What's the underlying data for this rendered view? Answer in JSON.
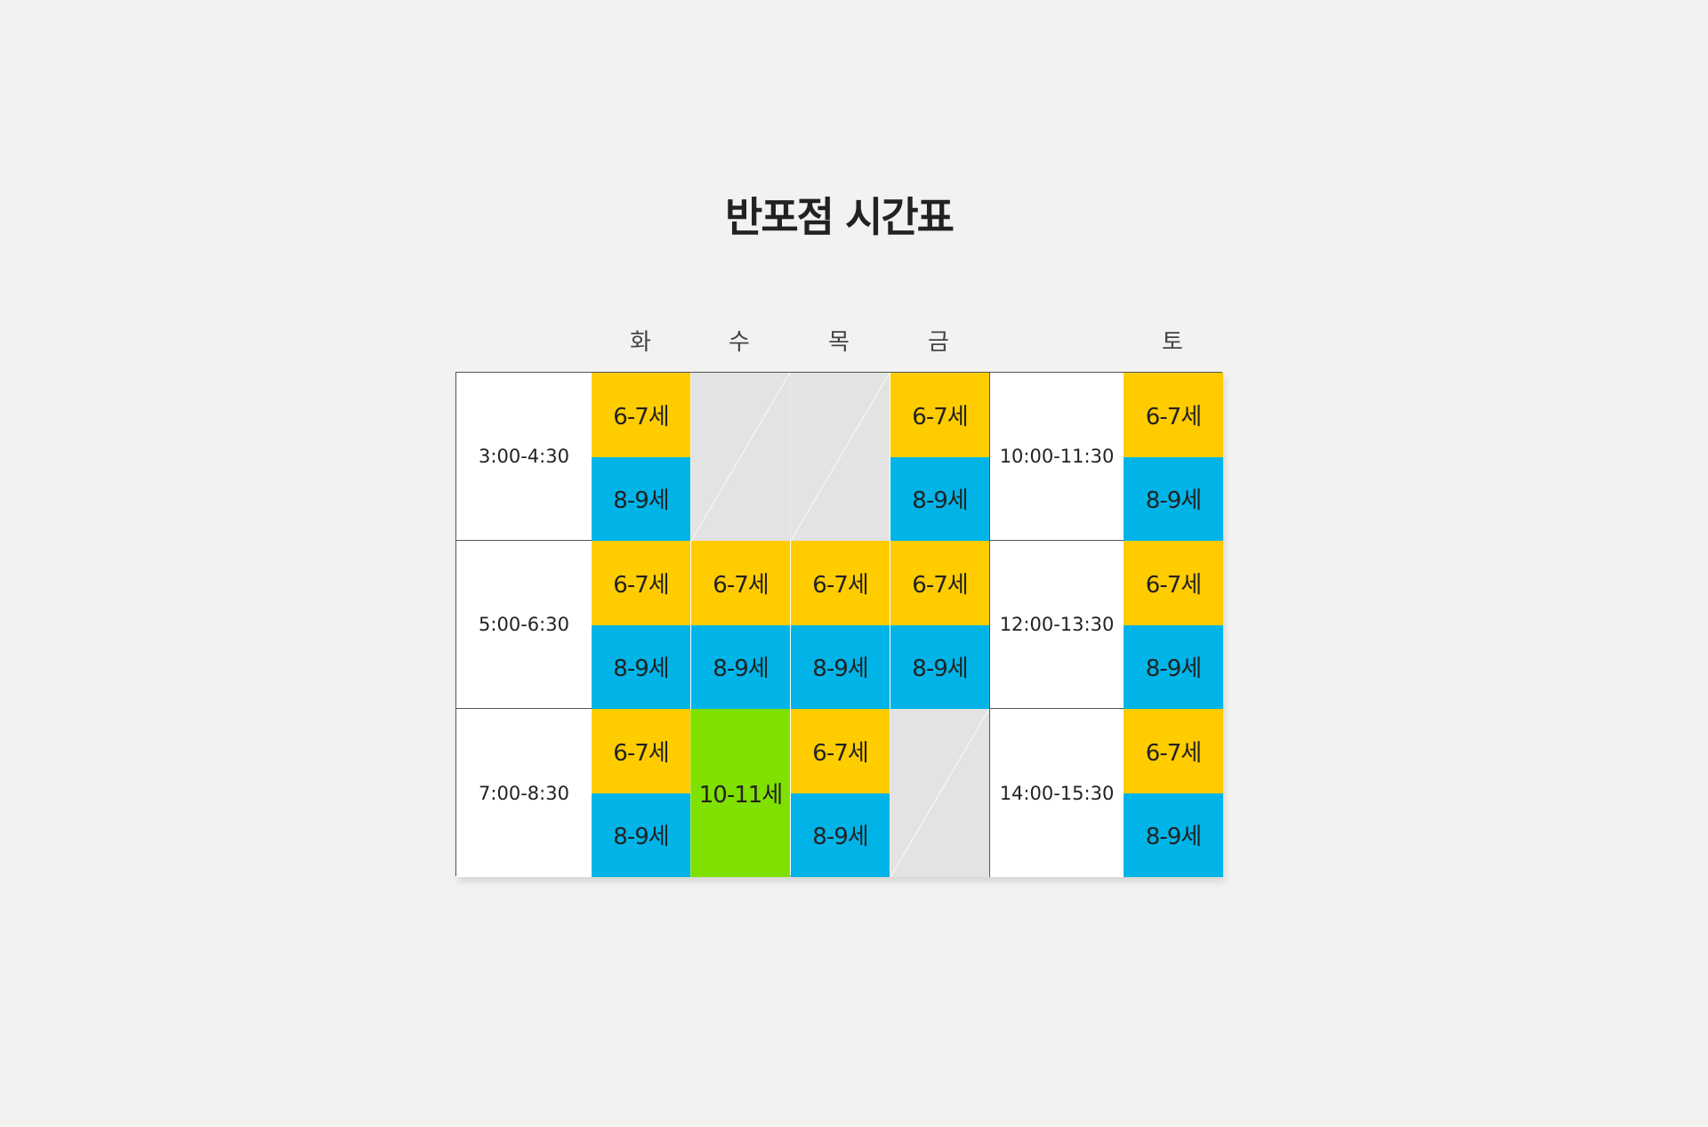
{
  "title": "반포점 시간표",
  "days": [
    "화",
    "수",
    "목",
    "금",
    "토"
  ],
  "colors": {
    "age_6_7": "#ffcc00",
    "age_8_9": "#00b4e8",
    "age_10_11": "#80e000",
    "closed": "#e4e3e3",
    "background": "#f2f2f0"
  },
  "weekday_rows": [
    {
      "time": "3:00-4:30",
      "cells": [
        {
          "type": "split",
          "top": "6-7세",
          "bottom": "8-9세"
        },
        {
          "type": "empty"
        },
        {
          "type": "empty"
        },
        {
          "type": "split",
          "top": "6-7세",
          "bottom": "8-9세"
        }
      ]
    },
    {
      "time": "5:00-6:30",
      "cells": [
        {
          "type": "split",
          "top": "6-7세",
          "bottom": "8-9세"
        },
        {
          "type": "split",
          "top": "6-7세",
          "bottom": "8-9세"
        },
        {
          "type": "split",
          "top": "6-7세",
          "bottom": "8-9세"
        },
        {
          "type": "split",
          "top": "6-7세",
          "bottom": "8-9세"
        }
      ]
    },
    {
      "time": "7:00-8:30",
      "cells": [
        {
          "type": "split",
          "top": "6-7세",
          "bottom": "8-9세"
        },
        {
          "type": "single",
          "label": "10-11세"
        },
        {
          "type": "split",
          "top": "6-7세",
          "bottom": "8-9세"
        },
        {
          "type": "empty"
        }
      ]
    }
  ],
  "saturday_rows": [
    {
      "time": "10:00-11:30",
      "top": "6-7세",
      "bottom": "8-9세"
    },
    {
      "time": "12:00-13:30",
      "top": "6-7세",
      "bottom": "8-9세"
    },
    {
      "time": "14:00-15:30",
      "top": "6-7세",
      "bottom": "8-9세"
    }
  ]
}
